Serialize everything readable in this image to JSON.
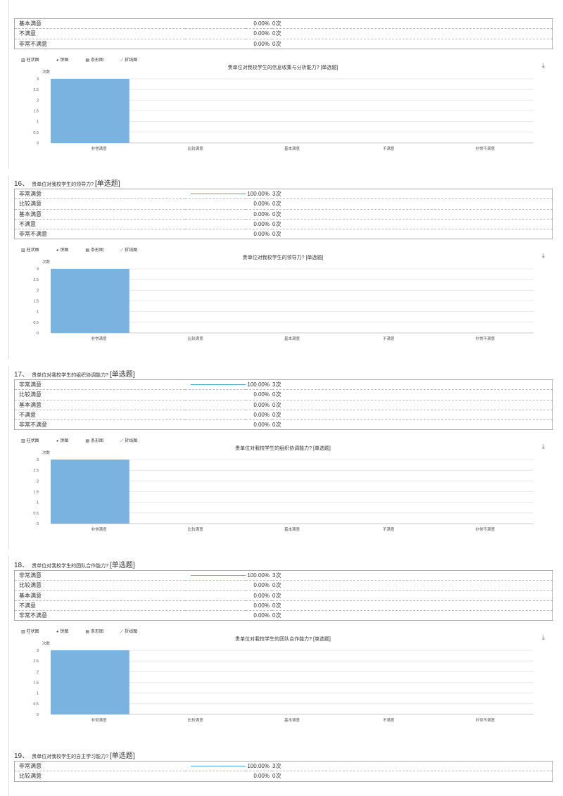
{
  "colors": {
    "bar": "#7ab2e0",
    "accent_line": "#4aa3d8",
    "grid": "#e3e3e3"
  },
  "icons": {
    "bar_tab": "bar-chart-icon",
    "pie_tab": "pie-chart-icon",
    "hbar_tab": "horizontal-bar-icon",
    "line_tab": "line-chart-icon",
    "download": "download-icon"
  },
  "tabs": [
    "柱状图",
    "饼图",
    "条形图",
    "折线图"
  ],
  "top_rows": [
    {
      "label": "基本满意",
      "pct": "0.00%",
      "count": "0次"
    },
    {
      "label": "不满意",
      "pct": "0.00%",
      "count": "0次"
    },
    {
      "label": "非常不满意",
      "pct": "0.00%",
      "count": "0次"
    }
  ],
  "top_chart_title": "贵单位对我校学生的信息收集与分析能力? [单选题]",
  "questions": [
    {
      "number": "16、",
      "text": "贵单位对我校学生的领导力?",
      "tag": "[单选题]",
      "rows": [
        {
          "label": "非常满意",
          "fill": 1.0,
          "pct": "100.00%",
          "count": "3次"
        },
        {
          "label": "比较满意",
          "fill": 0,
          "pct": "0.00%",
          "count": "0次"
        },
        {
          "label": "基本满意",
          "fill": 0,
          "pct": "0.00%",
          "count": "0次"
        },
        {
          "label": "不满意",
          "fill": 0,
          "pct": "0.00%",
          "count": "0次"
        },
        {
          "label": "非常不满意",
          "fill": 0,
          "pct": "0.00%",
          "count": "0次"
        }
      ],
      "chart_title": "贵单位对我校学生的领导力? [单选题]"
    },
    {
      "number": "17、",
      "text": "贵单位对我校学生的组织协调能力?",
      "tag": "[单选题]",
      "rows": [
        {
          "label": "非常满意",
          "fill": 1.0,
          "pct": "100.00%",
          "count": "3次"
        },
        {
          "label": "比较满意",
          "fill": 0,
          "pct": "0.00%",
          "count": "0次"
        },
        {
          "label": "基本满意",
          "fill": 0,
          "pct": "0.00%",
          "count": "0次"
        },
        {
          "label": "不满意",
          "fill": 0,
          "pct": "0.00%",
          "count": "0次"
        },
        {
          "label": "非常不满意",
          "fill": 0,
          "pct": "0.00%",
          "count": "0次"
        }
      ],
      "chart_title": "贵单位对我校学生的组织协调能力? [单选题]"
    },
    {
      "number": "18、",
      "text": "贵单位对我校学生的团队合作能力?",
      "tag": "[单选题]",
      "rows": [
        {
          "label": "非常满意",
          "fill": 1.0,
          "pct": "100.00%",
          "count": "3次"
        },
        {
          "label": "比较满意",
          "fill": 0,
          "pct": "0.00%",
          "count": "0次"
        },
        {
          "label": "基本满意",
          "fill": 0,
          "pct": "0.00%",
          "count": "0次"
        },
        {
          "label": "不满意",
          "fill": 0,
          "pct": "0.00%",
          "count": "0次"
        },
        {
          "label": "非常不满意",
          "fill": 0,
          "pct": "0.00%",
          "count": "0次"
        }
      ],
      "chart_title": "贵单位对我校学生的团队合作能力? [单选题]"
    },
    {
      "number": "19、",
      "text": "贵单位对我校学生的自主学习能力?",
      "tag": "[单选题]",
      "rows": [
        {
          "label": "非常满意",
          "fill": 1.0,
          "pct": "100.00%",
          "count": "3次"
        },
        {
          "label": "比较满意",
          "fill": 0,
          "pct": "0.00%",
          "count": "0次"
        }
      ]
    }
  ],
  "chart_data": [
    {
      "type": "bar",
      "title": "贵单位对我校学生的信息收集与分析能力? [单选题]",
      "ylabel": "次数",
      "categories": [
        "非常满意",
        "比较满意",
        "基本满意",
        "不满意",
        "非常不满意"
      ],
      "values": [
        3,
        0,
        0,
        0,
        0
      ],
      "ylim": [
        0,
        3
      ],
      "yticks": [
        "0",
        "0.5",
        "1",
        "1.5",
        "2",
        "2.5",
        "3"
      ],
      "grid": true
    },
    {
      "type": "bar",
      "title": "贵单位对我校学生的领导力? [单选题]",
      "ylabel": "次数",
      "categories": [
        "非常满意",
        "比较满意",
        "基本满意",
        "不满意",
        "非常不满意"
      ],
      "values": [
        3,
        0,
        0,
        0,
        0
      ],
      "ylim": [
        0,
        3
      ],
      "yticks": [
        "0",
        "0.5",
        "1",
        "1.5",
        "2",
        "2.5",
        "3"
      ],
      "grid": true
    },
    {
      "type": "bar",
      "title": "贵单位对我校学生的组织协调能力? [单选题]",
      "ylabel": "次数",
      "categories": [
        "非常满意",
        "比较满意",
        "基本满意",
        "不满意",
        "非常不满意"
      ],
      "values": [
        3,
        0,
        0,
        0,
        0
      ],
      "ylim": [
        0,
        3
      ],
      "yticks": [
        "0",
        "0.5",
        "1",
        "1.5",
        "2",
        "2.5",
        "3"
      ],
      "grid": true
    },
    {
      "type": "bar",
      "title": "贵单位对我校学生的团队合作能力? [单选题]",
      "ylabel": "次数",
      "categories": [
        "非常满意",
        "比较满意",
        "基本满意",
        "不满意",
        "非常不满意"
      ],
      "values": [
        3,
        0,
        0,
        0,
        0
      ],
      "ylim": [
        0,
        3
      ],
      "yticks": [
        "0",
        "0.5",
        "1",
        "1.5",
        "2",
        "2.5",
        "3"
      ],
      "grid": true
    }
  ]
}
